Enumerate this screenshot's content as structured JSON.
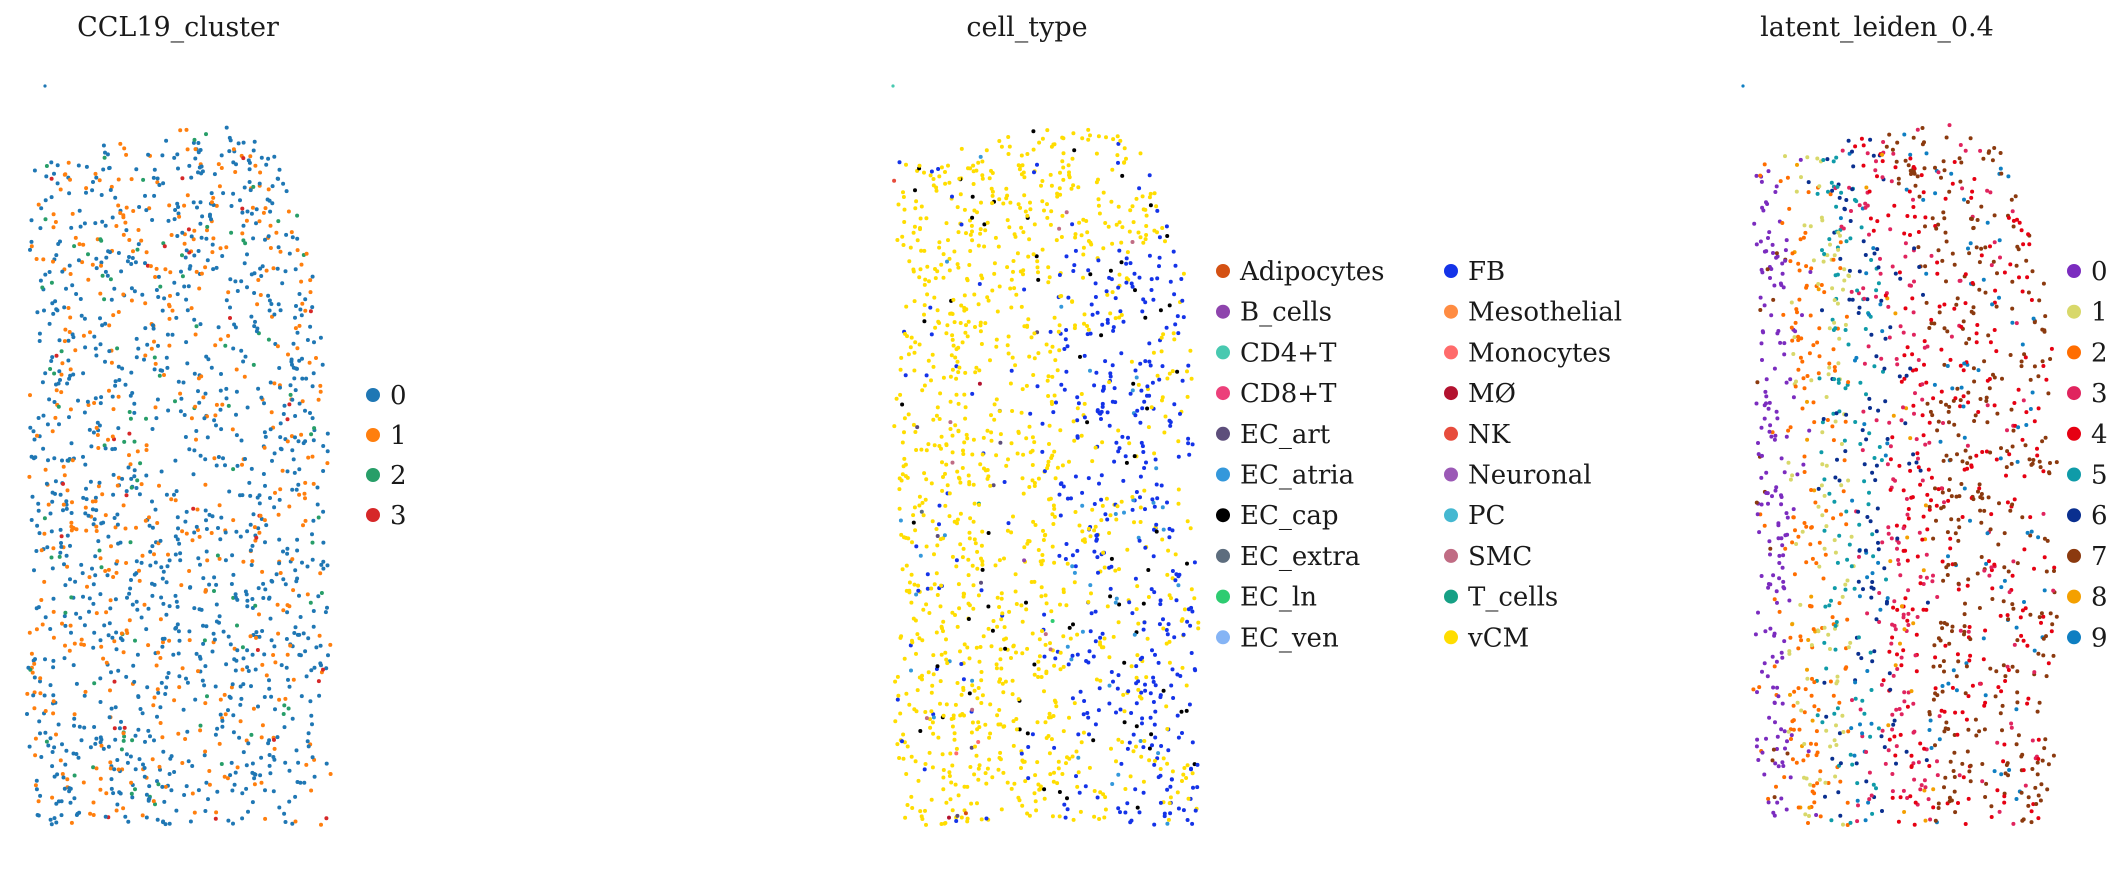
{
  "panels": [
    {
      "title": "CCL19_cluster",
      "chart_data": {
        "type": "scatter",
        "title": "CCL19_cluster",
        "xlabel": "",
        "ylabel": "",
        "grid": false,
        "legend_placement": "right",
        "legend": [
          {
            "label": "0",
            "color": "#1f77b4"
          },
          {
            "label": "1",
            "color": "#ff7f0e"
          },
          {
            "label": "2",
            "color": "#279e68"
          },
          {
            "label": "3",
            "color": "#d62728"
          }
        ],
        "mix": [
          0.62,
          0.3,
          0.06,
          0.02
        ]
      }
    },
    {
      "title": "cell_type",
      "chart_data": {
        "type": "scatter",
        "title": "cell_type",
        "xlabel": "",
        "ylabel": "",
        "grid": false,
        "legend_placement": "right",
        "legend_columns": 2,
        "legend": [
          {
            "label": "Adipocytes",
            "color": "#d45113"
          },
          {
            "label": "B_cells",
            "color": "#8e44ad"
          },
          {
            "label": "CD4+T",
            "color": "#48c9b0"
          },
          {
            "label": "CD8+T",
            "color": "#ec407a"
          },
          {
            "label": "EC_art",
            "color": "#5d4e7b"
          },
          {
            "label": "EC_atria",
            "color": "#3498db"
          },
          {
            "label": "EC_cap",
            "color": "#000000"
          },
          {
            "label": "EC_extra",
            "color": "#5d6d7e"
          },
          {
            "label": "EC_ln",
            "color": "#2ecc71"
          },
          {
            "label": "EC_ven",
            "color": "#85b4f5"
          },
          {
            "label": "FB",
            "color": "#1433e8"
          },
          {
            "label": "Mesothelial",
            "color": "#ff8c42"
          },
          {
            "label": "Monocytes",
            "color": "#ff6b6b"
          },
          {
            "label": "MØ",
            "color": "#b3122f"
          },
          {
            "label": "NK",
            "color": "#e74c3c"
          },
          {
            "label": "Neuronal",
            "color": "#9b59b6"
          },
          {
            "label": "PC",
            "color": "#45b8d1"
          },
          {
            "label": "SMC",
            "color": "#c06c84"
          },
          {
            "label": "T_cells",
            "color": "#16a085"
          },
          {
            "label": "vCM",
            "color": "#ffdd00"
          }
        ]
      }
    },
    {
      "title": "latent_leiden_0.4",
      "chart_data": {
        "type": "scatter",
        "title": "latent_leiden_0.4",
        "xlabel": "",
        "ylabel": "",
        "grid": false,
        "legend_placement": "right",
        "legend": [
          {
            "label": "0",
            "color": "#7b2cbf"
          },
          {
            "label": "1",
            "color": "#d8d86a"
          },
          {
            "label": "2",
            "color": "#ff6d00"
          },
          {
            "label": "3",
            "color": "#e0245e"
          },
          {
            "label": "4",
            "color": "#e60012"
          },
          {
            "label": "5",
            "color": "#0f9ba8"
          },
          {
            "label": "6",
            "color": "#0a2f8f"
          },
          {
            "label": "7",
            "color": "#8b3a0f"
          },
          {
            "label": "8",
            "color": "#f4a000"
          },
          {
            "label": "9",
            "color": "#0f7fc2"
          }
        ]
      }
    }
  ]
}
